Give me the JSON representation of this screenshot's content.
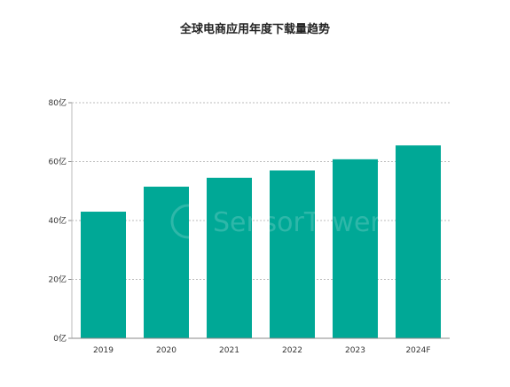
{
  "chart_data": {
    "type": "bar",
    "title": "全球电商应用年度下载量趋势",
    "categories": [
      "2019",
      "2020",
      "2021",
      "2022",
      "2023",
      "2024F"
    ],
    "values": [
      43,
      51.5,
      54.5,
      57,
      60.8,
      65.5
    ],
    "ylim": [
      0,
      80
    ],
    "yticks": [
      0,
      20,
      40,
      60,
      80
    ],
    "ytick_labels": [
      "0亿",
      "20亿",
      "40亿",
      "60亿",
      "80亿"
    ],
    "xlabel": "",
    "ylabel": "",
    "grid": true,
    "bar_color": "#00a896"
  },
  "watermark": {
    "text": "SensorTower"
  }
}
